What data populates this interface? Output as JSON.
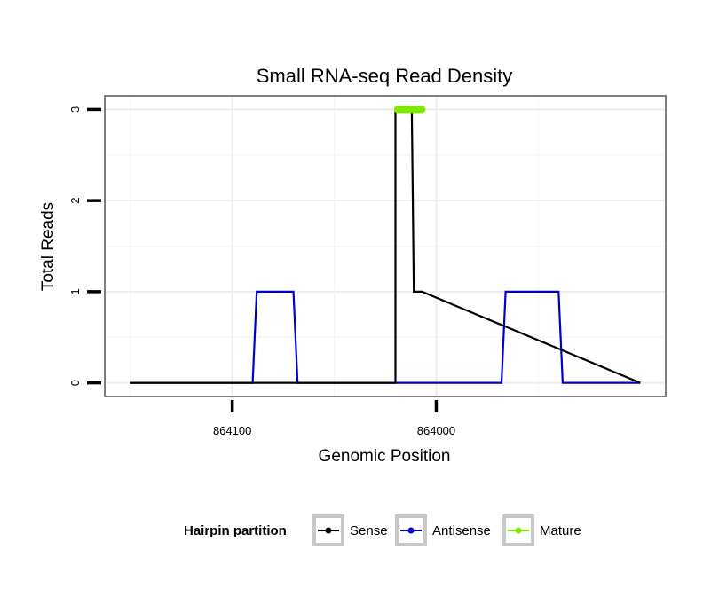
{
  "chart_data": {
    "type": "line",
    "title": "Small RNA-seq Read Density",
    "xlabel": "Genomic Position",
    "ylabel": "Total Reads",
    "xlim": [
      864162.5,
      863887.5
    ],
    "ylim": [
      -0.15,
      3.15
    ],
    "x_reversed": true,
    "x_ticks": [
      864100,
      864000
    ],
    "x_tick_labels": [
      "864100",
      "864000"
    ],
    "y_ticks": [
      0,
      1,
      2,
      3
    ],
    "y_tick_labels": [
      "0",
      "1",
      "2",
      "3"
    ],
    "grid": true,
    "legend": {
      "title": "Hairpin partition",
      "position": "bottom",
      "entries": [
        "Sense",
        "Antisense",
        "Mature"
      ]
    },
    "series": [
      {
        "name": "Sense",
        "color": "#000000",
        "x": [
          864150,
          864020,
          864020,
          864012,
          864011,
          864007,
          863900
        ],
        "y": [
          0,
          0,
          3,
          3,
          1,
          1,
          0
        ]
      },
      {
        "name": "Antisense",
        "color": "#0000cc",
        "x": [
          864150,
          864090,
          864088,
          864070,
          864068,
          864020,
          864007,
          863968,
          863966,
          863940,
          863938,
          863900
        ],
        "y": [
          0,
          0,
          1,
          1,
          0,
          0,
          0,
          0,
          1,
          1,
          0,
          0
        ]
      },
      {
        "name": "Mature",
        "color": "#7fea00",
        "x": [
          864019,
          864007
        ],
        "y": [
          3,
          3
        ]
      }
    ]
  }
}
